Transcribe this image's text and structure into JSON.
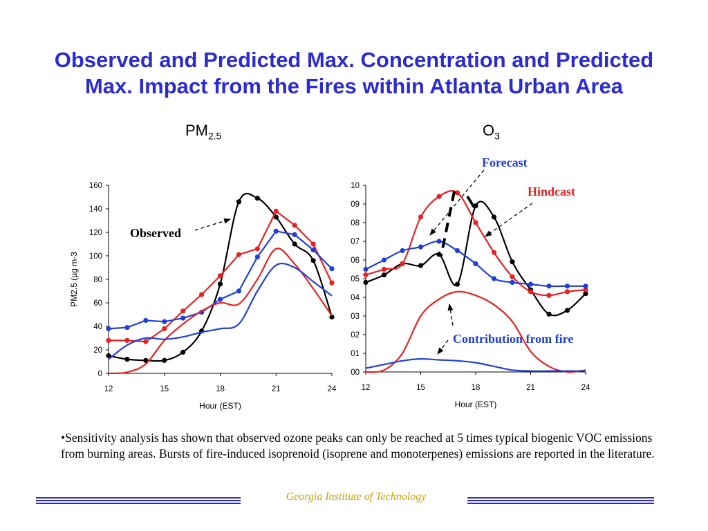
{
  "slide": {
    "title_line1": "Observed and Predicted Max. Concentration and Predicted",
    "title_line2": "Max. Impact from the Fires within Atlanta Urban Area",
    "note": "•Sensitivity analysis has shown that observed ozone peaks can only be reached at 5 times typical biogenic VOC emissions from burning areas. Bursts of  fire-induced isoprenoid (isoprene and monoterpenes) emissions are reported in the literature.",
    "footer": "Georgia Institute of Technology"
  },
  "colors": {
    "title": "#2b2bd1",
    "observed": "#000000",
    "hindcast": "#e82020",
    "forecast": "#1f3fd8",
    "footer": "#c9a400"
  },
  "chart_data": [
    {
      "type": "line",
      "panel_base": "PM",
      "panel_sub": "2.5",
      "xlabel": "Hour (EST)",
      "ylabel": "PM2.5 (µg m-3",
      "xlim": [
        12,
        24
      ],
      "ylim": [
        0,
        160
      ],
      "xticks": [
        "12",
        "15",
        "18",
        "21",
        "24"
      ],
      "yticks": [
        "0",
        "20",
        "40",
        "60",
        "80",
        "100",
        "120",
        "140",
        "160"
      ],
      "annotations": [
        {
          "text": "Observed",
          "color": "#000000"
        }
      ],
      "series": [
        {
          "color": "#000000",
          "markers": true,
          "smooth": true,
          "x": [
            12,
            13,
            14,
            15,
            16,
            17,
            18,
            19,
            20,
            21,
            22,
            23,
            24
          ],
          "y": [
            15,
            12,
            11,
            11,
            18,
            36,
            76,
            146,
            149,
            133,
            110,
            96,
            48
          ]
        },
        {
          "color": "#e82020",
          "markers": true,
          "smooth": false,
          "x": [
            12,
            13,
            14,
            15,
            16,
            17,
            18,
            19,
            20,
            21,
            22,
            23,
            24
          ],
          "y": [
            28,
            28,
            27,
            38,
            53,
            67,
            83,
            101,
            106,
            138,
            126,
            110,
            77
          ]
        },
        {
          "color": "#1f3fd8",
          "markers": true,
          "smooth": false,
          "x": [
            12,
            13,
            14,
            15,
            16,
            17,
            18,
            19,
            20,
            21,
            22,
            23,
            24
          ],
          "y": [
            38,
            39,
            45,
            44,
            47,
            52,
            63,
            70,
            99,
            121,
            118,
            105,
            89
          ]
        },
        {
          "color": "#e82020",
          "markers": false,
          "smooth": true,
          "x": [
            12,
            13,
            14,
            15,
            16,
            17,
            18,
            19,
            20,
            21,
            22,
            23,
            24
          ],
          "y": [
            0,
            1,
            8,
            28,
            42,
            53,
            60,
            59,
            80,
            106,
            93,
            72,
            49
          ]
        },
        {
          "color": "#1f3fd8",
          "markers": false,
          "smooth": true,
          "x": [
            12,
            13,
            14,
            15,
            16,
            17,
            18,
            19,
            20,
            21,
            22,
            23,
            24
          ],
          "y": [
            12,
            24,
            30,
            29,
            31,
            35,
            38,
            42,
            70,
            92,
            90,
            78,
            66
          ]
        }
      ]
    },
    {
      "type": "line",
      "panel_base": "O",
      "panel_sub": "3",
      "xlabel": "Hour (EST)",
      "ylabel": "",
      "xlim": [
        12,
        24
      ],
      "ylim": [
        0,
        10
      ],
      "xticks": [
        "12",
        "15",
        "18",
        "21",
        "24"
      ],
      "yticks": [
        "00",
        "01",
        "02",
        "03",
        "04",
        "05",
        "06",
        "07",
        "08",
        "09",
        "10"
      ],
      "annotations": [
        {
          "text": "Forecast",
          "color": "#1f3fd8"
        },
        {
          "text": "Hindcast",
          "color": "#e82020"
        },
        {
          "text": "Contribution from fire",
          "color": "#1f3fd8"
        }
      ],
      "series": [
        {
          "color": "#000000",
          "markers": true,
          "smooth": true,
          "x": [
            12,
            13,
            14,
            15,
            16,
            17,
            18,
            19,
            20,
            21,
            22,
            23,
            24
          ],
          "y": [
            4.8,
            5.2,
            5.8,
            5.7,
            6.3,
            4.7,
            8.9,
            8.3,
            5.9,
            4.4,
            3.1,
            3.3,
            4.2
          ]
        },
        {
          "color": "#e82020",
          "markers": true,
          "smooth": true,
          "x": [
            12,
            13,
            14,
            15,
            16,
            17,
            18,
            19,
            20,
            21,
            22,
            23,
            24
          ],
          "y": [
            5.2,
            5.5,
            5.8,
            8.3,
            9.4,
            9.6,
            8.0,
            6.4,
            5.1,
            4.3,
            4.1,
            4.3,
            4.4
          ]
        },
        {
          "color": "#1f3fd8",
          "markers": true,
          "smooth": true,
          "x": [
            12,
            13,
            14,
            15,
            16,
            17,
            18,
            19,
            20,
            21,
            22,
            23,
            24
          ],
          "y": [
            5.5,
            6.0,
            6.5,
            6.7,
            7.0,
            6.5,
            5.8,
            5.0,
            4.8,
            4.7,
            4.6,
            4.6,
            4.6
          ]
        },
        {
          "color": "#e82020",
          "markers": false,
          "smooth": true,
          "x": [
            12,
            13,
            14,
            15,
            16,
            17,
            18,
            19,
            20,
            21,
            22,
            23,
            24
          ],
          "y": [
            0,
            0.1,
            1.0,
            3.0,
            3.9,
            4.3,
            4.1,
            3.6,
            2.7,
            1.1,
            0.3,
            0,
            0.1
          ]
        },
        {
          "color": "#1f3fd8",
          "markers": false,
          "smooth": true,
          "x": [
            12,
            13,
            14,
            15,
            16,
            17,
            18,
            19,
            20,
            21,
            22,
            23,
            24
          ],
          "y": [
            0.2,
            0.4,
            0.6,
            0.7,
            0.65,
            0.6,
            0.5,
            0.3,
            0.1,
            0.05,
            0.05,
            0.05,
            0.05
          ]
        }
      ]
    }
  ]
}
